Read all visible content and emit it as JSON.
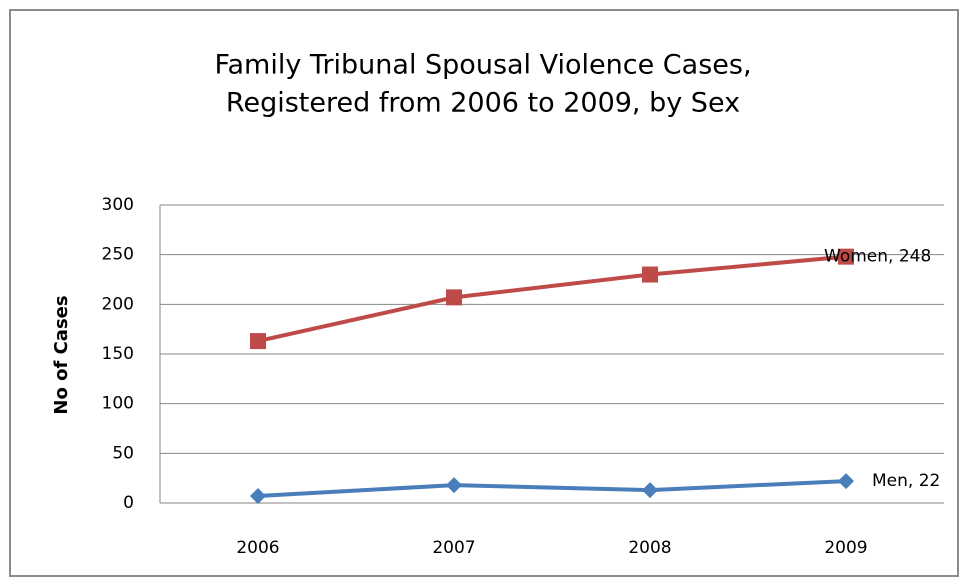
{
  "chart_data": {
    "type": "line",
    "title": [
      "Family Tribunal Spousal Violence Cases,",
      "Registered from 2006 to 2009, by Sex"
    ],
    "y_label": "No of Cases",
    "categories": [
      "2006",
      "2007",
      "2008",
      "2009"
    ],
    "series": [
      {
        "name": "Women",
        "color": "#be4b48",
        "marker": "square",
        "values": [
          163,
          207,
          230,
          248
        ],
        "value_labels": [
          null,
          null,
          null,
          "Women, 248"
        ]
      },
      {
        "name": "Men",
        "color": "#4a7ebb",
        "marker": "diamond",
        "values": [
          7,
          18,
          13,
          22
        ],
        "value_labels": [
          null,
          null,
          null,
          "Men, 22"
        ]
      }
    ],
    "ylim": [
      0,
      300
    ],
    "yticks": [
      0,
      50,
      100,
      150,
      200,
      250,
      300
    ],
    "grid": true
  }
}
